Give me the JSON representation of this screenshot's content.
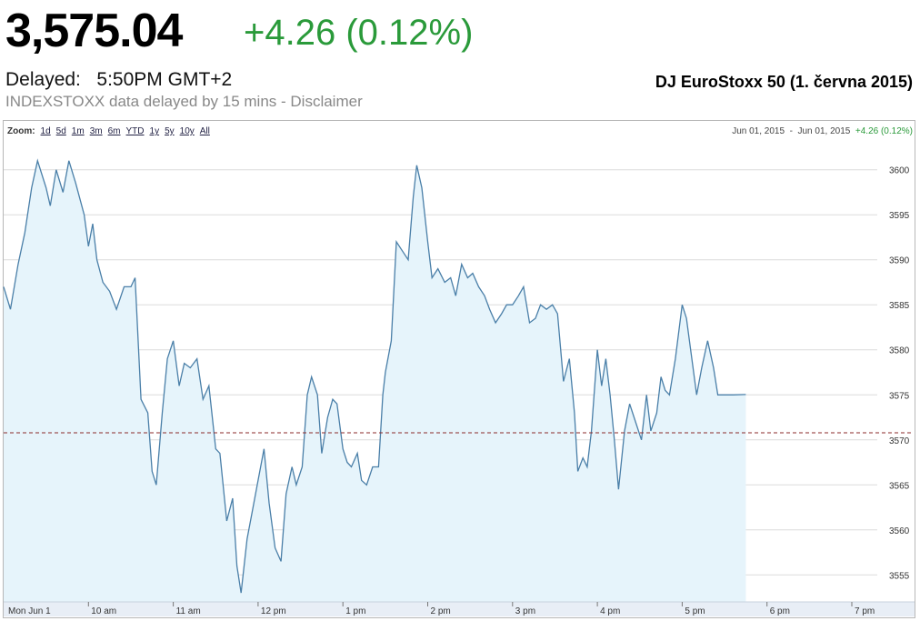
{
  "header": {
    "price": "3,575.04",
    "change": "+4.26 (0.12%)",
    "delayed_label": "Delayed:",
    "delayed_time": "5:50PM GMT+2",
    "source_note": "INDEXSTOXX data delayed by 15 mins - Disclaimer",
    "caption": "DJ EuroStoxx 50 (1. června 2015)"
  },
  "zoom": {
    "label": "Zoom:",
    "options": [
      "1d",
      "5d",
      "1m",
      "3m",
      "6m",
      "YTD",
      "1y",
      "5y",
      "10y",
      "All"
    ]
  },
  "range": {
    "start": "Jun 01, 2015",
    "separator": "-",
    "end": "Jun 01, 2015",
    "change": "+4.26 (0.12%)"
  },
  "colors": {
    "positive": "#2a9a3a",
    "line": "#4a7fa8",
    "fill": "#e6f4fb",
    "reference": "#8b2a2a"
  },
  "chart_data": {
    "type": "area",
    "x_ticks": [
      "Mon Jun 1",
      "10 am",
      "11 am",
      "12 pm",
      "1 pm",
      "2 pm",
      "3 pm",
      "4 pm",
      "5 pm",
      "6 pm",
      "7 pm"
    ],
    "y_ticks": [
      3555,
      3560,
      3565,
      3570,
      3575,
      3580,
      3585,
      3590,
      3595,
      3600
    ],
    "ylim": [
      3552,
      3603
    ],
    "xlim_hours": [
      9,
      19.3
    ],
    "previous_close": 3570.78,
    "grid": true,
    "series": [
      {
        "points": [
          [
            9.0,
            3587.0
          ],
          [
            9.08,
            3584.5
          ],
          [
            9.17,
            3589.5
          ],
          [
            9.25,
            3593.0
          ],
          [
            9.33,
            3598.0
          ],
          [
            9.4,
            3601.0
          ],
          [
            9.5,
            3598.0
          ],
          [
            9.55,
            3596.0
          ],
          [
            9.62,
            3600.0
          ],
          [
            9.7,
            3597.5
          ],
          [
            9.77,
            3601.0
          ],
          [
            9.85,
            3598.5
          ],
          [
            9.95,
            3595.0
          ],
          [
            10.0,
            3591.5
          ],
          [
            10.05,
            3594.0
          ],
          [
            10.1,
            3590.0
          ],
          [
            10.17,
            3587.5
          ],
          [
            10.25,
            3586.5
          ],
          [
            10.33,
            3584.5
          ],
          [
            10.42,
            3587.0
          ],
          [
            10.5,
            3587.0
          ],
          [
            10.55,
            3588.0
          ],
          [
            10.62,
            3574.5
          ],
          [
            10.7,
            3573.0
          ],
          [
            10.75,
            3566.5
          ],
          [
            10.8,
            3565.0
          ],
          [
            10.87,
            3573.0
          ],
          [
            10.93,
            3579.0
          ],
          [
            11.0,
            3581.0
          ],
          [
            11.07,
            3576.0
          ],
          [
            11.13,
            3578.5
          ],
          [
            11.2,
            3578.0
          ],
          [
            11.28,
            3579.0
          ],
          [
            11.35,
            3574.5
          ],
          [
            11.42,
            3576.0
          ],
          [
            11.5,
            3569.0
          ],
          [
            11.55,
            3568.5
          ],
          [
            11.63,
            3561.0
          ],
          [
            11.7,
            3563.5
          ],
          [
            11.75,
            3556.0
          ],
          [
            11.8,
            3553.0
          ],
          [
            11.87,
            3559.0
          ],
          [
            11.93,
            3562.0
          ],
          [
            12.0,
            3565.5
          ],
          [
            12.07,
            3569.0
          ],
          [
            12.13,
            3563.0
          ],
          [
            12.2,
            3558.0
          ],
          [
            12.27,
            3556.5
          ],
          [
            12.33,
            3564.0
          ],
          [
            12.4,
            3567.0
          ],
          [
            12.45,
            3565.0
          ],
          [
            12.52,
            3567.0
          ],
          [
            12.58,
            3575.0
          ],
          [
            12.63,
            3577.0
          ],
          [
            12.7,
            3575.0
          ],
          [
            12.75,
            3568.5
          ],
          [
            12.82,
            3572.5
          ],
          [
            12.88,
            3574.5
          ],
          [
            12.93,
            3574.0
          ],
          [
            13.0,
            3569.0
          ],
          [
            13.05,
            3567.5
          ],
          [
            13.1,
            3567.0
          ],
          [
            13.17,
            3568.5
          ],
          [
            13.22,
            3565.5
          ],
          [
            13.28,
            3565.0
          ],
          [
            13.35,
            3567.0
          ],
          [
            13.42,
            3567.0
          ],
          [
            13.47,
            3575.0
          ],
          [
            13.5,
            3577.5
          ],
          [
            13.57,
            3581.0
          ],
          [
            13.63,
            3592.0
          ],
          [
            13.7,
            3591.0
          ],
          [
            13.77,
            3590.0
          ],
          [
            13.83,
            3597.0
          ],
          [
            13.87,
            3600.5
          ],
          [
            13.93,
            3598.0
          ],
          [
            14.0,
            3592.0
          ],
          [
            14.05,
            3588.0
          ],
          [
            14.12,
            3589.0
          ],
          [
            14.2,
            3587.5
          ],
          [
            14.27,
            3588.0
          ],
          [
            14.33,
            3586.0
          ],
          [
            14.4,
            3589.5
          ],
          [
            14.47,
            3588.0
          ],
          [
            14.53,
            3588.5
          ],
          [
            14.6,
            3587.0
          ],
          [
            14.67,
            3586.0
          ],
          [
            14.73,
            3584.5
          ],
          [
            14.8,
            3583.0
          ],
          [
            14.87,
            3584.0
          ],
          [
            14.93,
            3585.0
          ],
          [
            15.0,
            3585.0
          ],
          [
            15.07,
            3586.0
          ],
          [
            15.13,
            3587.0
          ],
          [
            15.2,
            3583.0
          ],
          [
            15.27,
            3583.5
          ],
          [
            15.33,
            3585.0
          ],
          [
            15.4,
            3584.5
          ],
          [
            15.47,
            3585.0
          ],
          [
            15.53,
            3584.0
          ],
          [
            15.6,
            3576.5
          ],
          [
            15.67,
            3579.0
          ],
          [
            15.73,
            3573.0
          ],
          [
            15.77,
            3566.5
          ],
          [
            15.83,
            3568.0
          ],
          [
            15.88,
            3567.0
          ],
          [
            15.93,
            3571.0
          ],
          [
            16.0,
            3580.0
          ],
          [
            16.05,
            3576.0
          ],
          [
            16.1,
            3579.0
          ],
          [
            16.15,
            3575.0
          ],
          [
            16.2,
            3570.0
          ],
          [
            16.25,
            3564.5
          ],
          [
            16.32,
            3571.0
          ],
          [
            16.38,
            3574.0
          ],
          [
            16.45,
            3572.0
          ],
          [
            16.52,
            3570.0
          ],
          [
            16.58,
            3575.0
          ],
          [
            16.63,
            3571.0
          ],
          [
            16.7,
            3573.0
          ],
          [
            16.75,
            3577.0
          ],
          [
            16.8,
            3575.5
          ],
          [
            16.85,
            3575.0
          ],
          [
            16.92,
            3579.0
          ],
          [
            17.0,
            3585.0
          ],
          [
            17.05,
            3583.5
          ],
          [
            17.1,
            3580.0
          ],
          [
            17.17,
            3575.0
          ],
          [
            17.23,
            3578.0
          ],
          [
            17.3,
            3581.0
          ],
          [
            17.37,
            3578.0
          ],
          [
            17.42,
            3575.0
          ],
          [
            17.5,
            3575.0
          ],
          [
            17.6,
            3575.0
          ],
          [
            17.75,
            3575.04
          ]
        ]
      }
    ]
  }
}
